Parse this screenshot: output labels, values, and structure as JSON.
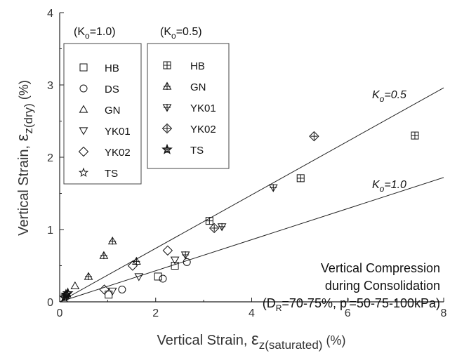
{
  "chart_data": {
    "type": "scatter",
    "xlim": [
      0,
      8
    ],
    "ylim": [
      0,
      4
    ],
    "x_ticks": [
      "0",
      "2",
      "4",
      "6",
      "8"
    ],
    "y_ticks": [
      "0",
      "1",
      "2",
      "3",
      "4"
    ],
    "xlabel": {
      "main": "Vertical Strain, ",
      "symbol": "ε",
      "sub": "z(saturated)",
      "unit": "(%)"
    },
    "ylabel": {
      "main": "Vertical Strain, ",
      "symbol": "ε",
      "sub": "z(dry)",
      "unit": "(%)"
    },
    "legend_groups": [
      {
        "title": {
          "pre": "(K",
          "sub": "o",
          "post": "=1.0)"
        },
        "entries": [
          {
            "name": "HB",
            "marker": "square"
          },
          {
            "name": "DS",
            "marker": "circle"
          },
          {
            "name": "GN",
            "marker": "triangle"
          },
          {
            "name": "YK01",
            "marker": "triangle-down"
          },
          {
            "name": "YK02",
            "marker": "diamond"
          },
          {
            "name": "TS",
            "marker": "star"
          }
        ]
      },
      {
        "title": {
          "pre": "(K",
          "sub": "o",
          "post": "=0.5)"
        },
        "entries": [
          {
            "name": "HB",
            "marker": "square-plus"
          },
          {
            "name": "GN",
            "marker": "triangle-plus"
          },
          {
            "name": "YK01",
            "marker": "triangle-down-plus"
          },
          {
            "name": "YK02",
            "marker": "diamond-plus"
          },
          {
            "name": "TS",
            "marker": "star-bold"
          }
        ]
      }
    ],
    "fit_lines": [
      {
        "label": {
          "pre": "K",
          "sub": "o",
          "post": "=0.5"
        },
        "slope": 0.37,
        "x": [
          0,
          8
        ]
      },
      {
        "label": {
          "pre": "K",
          "sub": "o",
          "post": "=1.0"
        },
        "slope": 0.215,
        "x": [
          0,
          8
        ]
      }
    ],
    "series": [
      {
        "legend": "(Ko=1.0) HB",
        "marker": "square",
        "points": [
          [
            1.02,
            0.1
          ],
          [
            2.05,
            0.35
          ],
          [
            2.4,
            0.5
          ]
        ]
      },
      {
        "legend": "(Ko=1.0) DS",
        "marker": "circle",
        "points": [
          [
            1.3,
            0.17
          ],
          [
            2.15,
            0.32
          ],
          [
            2.65,
            0.55
          ]
        ]
      },
      {
        "legend": "(Ko=1.0) GN",
        "marker": "triangle",
        "points": [
          [
            0.32,
            0.22
          ]
        ]
      },
      {
        "legend": "(Ko=1.0) YK01",
        "marker": "triangle-down",
        "points": [
          [
            1.1,
            0.15
          ],
          [
            1.65,
            0.35
          ],
          [
            2.4,
            0.58
          ]
        ]
      },
      {
        "legend": "(Ko=1.0) YK02",
        "marker": "diamond",
        "points": [
          [
            0.93,
            0.17
          ],
          [
            1.52,
            0.5
          ],
          [
            2.25,
            0.71
          ]
        ]
      },
      {
        "legend": "(Ko=1.0) TS",
        "marker": "star",
        "points": [
          [
            0.12,
            0.08
          ],
          [
            0.15,
            0.1
          ]
        ]
      },
      {
        "legend": "(Ko=0.5) HB",
        "marker": "square-plus",
        "points": [
          [
            3.12,
            1.12
          ],
          [
            5.02,
            1.71
          ],
          [
            7.4,
            2.3
          ]
        ]
      },
      {
        "legend": "(Ko=0.5) GN",
        "marker": "triangle-plus",
        "points": [
          [
            0.6,
            0.35
          ],
          [
            0.92,
            0.64
          ],
          [
            1.1,
            0.84
          ],
          [
            1.6,
            0.56
          ]
        ]
      },
      {
        "legend": "(Ko=0.5) YK01",
        "marker": "triangle-down-plus",
        "points": [
          [
            2.62,
            0.65
          ],
          [
            3.38,
            1.04
          ],
          [
            4.45,
            1.58
          ]
        ]
      },
      {
        "legend": "(Ko=0.5) YK02",
        "marker": "diamond-plus",
        "points": [
          [
            3.22,
            1.02
          ],
          [
            5.3,
            2.29
          ]
        ]
      },
      {
        "legend": "(Ko=0.5) TS",
        "marker": "star-bold",
        "points": [
          [
            0.1,
            0.06
          ],
          [
            0.13,
            0.1
          ],
          [
            0.17,
            0.12
          ]
        ]
      }
    ],
    "annotation": {
      "line1": "Vertical Compression",
      "line2": "during Consolidation",
      "line3": {
        "pre": "(D",
        "sub": "R",
        "post": "=70-75%, p'=50-75-100kPa)"
      }
    },
    "grid": false
  }
}
